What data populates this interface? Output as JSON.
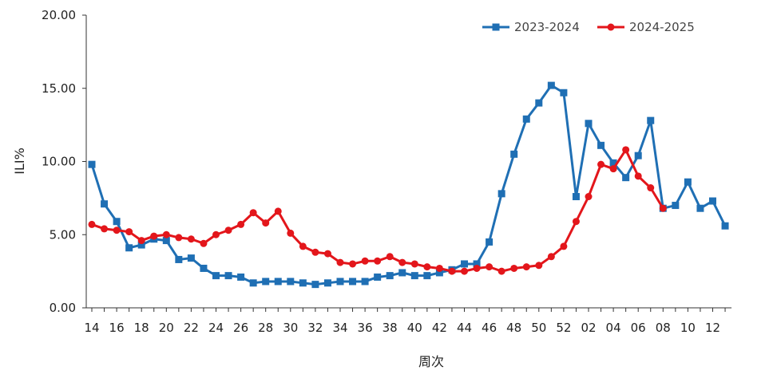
{
  "chart_data": {
    "type": "line",
    "title": "",
    "xlabel": "周次",
    "ylabel": "ILI%",
    "ylim": [
      0,
      20
    ],
    "yticks": [
      "0.00",
      "5.00",
      "10.00",
      "15.00",
      "20.00"
    ],
    "x_tick_labels": [
      "14",
      "16",
      "18",
      "20",
      "22",
      "24",
      "26",
      "28",
      "30",
      "32",
      "34",
      "36",
      "38",
      "40",
      "42",
      "44",
      "46",
      "48",
      "50",
      "52",
      "02",
      "04",
      "06",
      "08",
      "10",
      "12"
    ],
    "categories": [
      "14",
      "15",
      "16",
      "17",
      "18",
      "19",
      "20",
      "21",
      "22",
      "23",
      "24",
      "25",
      "26",
      "27",
      "28",
      "29",
      "30",
      "31",
      "32",
      "33",
      "34",
      "35",
      "36",
      "37",
      "38",
      "39",
      "40",
      "41",
      "42",
      "43",
      "44",
      "45",
      "46",
      "47",
      "48",
      "49",
      "50",
      "51",
      "52",
      "01",
      "02",
      "03",
      "04",
      "05",
      "06",
      "07",
      "08",
      "09",
      "10",
      "11",
      "12",
      "13"
    ],
    "grid": false,
    "legend_position": "top-right",
    "series": [
      {
        "name": "2023-2024",
        "color": "#1f6fb4",
        "marker": "square",
        "values": [
          9.8,
          7.1,
          5.9,
          4.1,
          4.3,
          4.7,
          4.6,
          3.3,
          3.4,
          2.7,
          2.2,
          2.2,
          2.1,
          1.7,
          1.8,
          1.8,
          1.8,
          1.7,
          1.6,
          1.7,
          1.8,
          1.8,
          1.8,
          2.1,
          2.2,
          2.4,
          2.2,
          2.2,
          2.4,
          2.6,
          3.0,
          3.0,
          4.5,
          7.8,
          10.5,
          12.9,
          14.0,
          15.2,
          14.7,
          7.6,
          12.6,
          11.1,
          9.9,
          8.9,
          10.4,
          12.8,
          6.8,
          7.0,
          8.6,
          6.8,
          7.3,
          5.6
        ]
      },
      {
        "name": "2024-2025",
        "color": "#e3161b",
        "marker": "circle",
        "values": [
          5.7,
          5.4,
          5.3,
          5.2,
          4.6,
          4.9,
          5.0,
          4.8,
          4.7,
          4.4,
          5.0,
          5.3,
          5.7,
          6.5,
          5.8,
          6.6,
          5.1,
          4.2,
          3.8,
          3.7,
          3.1,
          3.0,
          3.2,
          3.2,
          3.5,
          3.1,
          3.0,
          2.8,
          2.7,
          2.5,
          2.5,
          2.7,
          2.8,
          2.5,
          2.7,
          2.8,
          2.9,
          3.5,
          4.2,
          5.9,
          7.6,
          9.8,
          9.5,
          10.8,
          9.0,
          8.2,
          6.8,
          null,
          null,
          null,
          null,
          null
        ]
      }
    ]
  }
}
